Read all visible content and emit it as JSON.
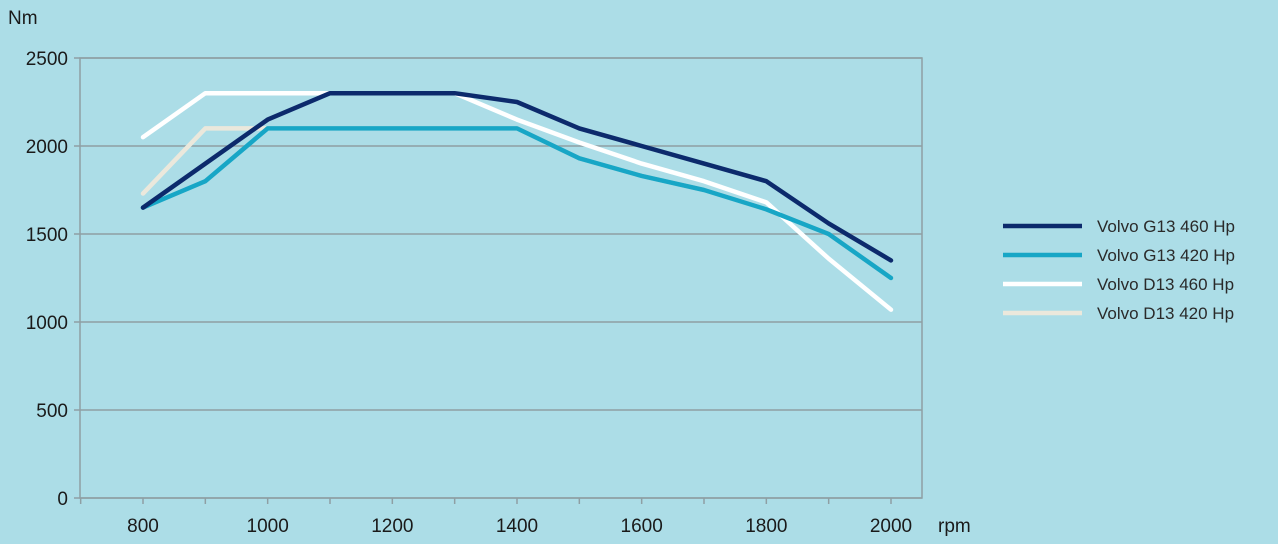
{
  "chart_data": {
    "type": "line",
    "title": "",
    "xlabel": "rpm",
    "ylabel": "Nm",
    "x": [
      800,
      900,
      1000,
      1100,
      1200,
      1300,
      1400,
      1500,
      1600,
      1700,
      1800,
      1900,
      2000
    ],
    "xticks": [
      "800",
      "1000",
      "1200",
      "1400",
      "1600",
      "1800",
      "2000"
    ],
    "yticks": [
      "0",
      "500",
      "1000",
      "1500",
      "2000",
      "2500"
    ],
    "xlim": [
      700,
      2050
    ],
    "ylim": [
      0,
      2500
    ],
    "grid": true,
    "legend_position": "right",
    "series": [
      {
        "name": "Volvo D13 420 Hp",
        "color": "#ebe8dc",
        "values": [
          1730,
          2100,
          2100,
          2100,
          2100,
          2100,
          2100,
          1930,
          1830,
          1750,
          1640,
          1500,
          1250
        ]
      },
      {
        "name": "Volvo D13 460 Hp",
        "color": "#ffffff",
        "values": [
          2050,
          2300,
          2300,
          2300,
          2300,
          2300,
          2150,
          2020,
          1900,
          1800,
          1680,
          1360,
          1070
        ]
      },
      {
        "name": "Volvo G13 420 Hp",
        "color": "#17a6c6",
        "values": [
          1650,
          1800,
          2100,
          2100,
          2100,
          2100,
          2100,
          1930,
          1830,
          1750,
          1640,
          1500,
          1250
        ]
      },
      {
        "name": "Volvo G13 460 Hp",
        "color": "#0c2a6c",
        "values": [
          1650,
          1900,
          2150,
          2300,
          2300,
          2300,
          2250,
          2100,
          2000,
          1900,
          1800,
          1560,
          1350
        ]
      }
    ],
    "legend_order": [
      3,
      2,
      1,
      0
    ]
  }
}
